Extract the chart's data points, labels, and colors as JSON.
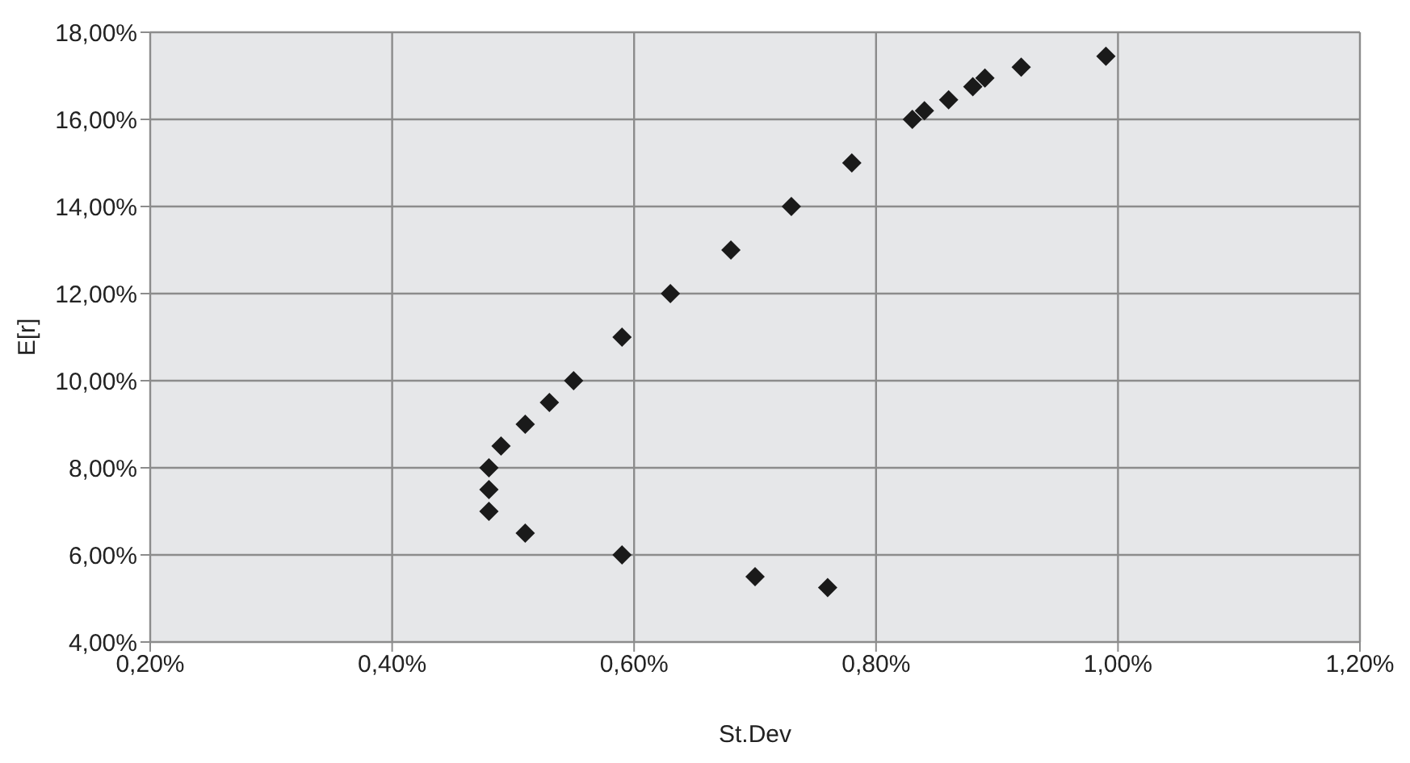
{
  "chart_data": {
    "type": "scatter",
    "xlabel": "St.Dev",
    "ylabel": "E[r]",
    "x": [
      0.99,
      0.92,
      0.89,
      0.88,
      0.86,
      0.84,
      0.83,
      0.78,
      0.73,
      0.68,
      0.63,
      0.59,
      0.55,
      0.53,
      0.51,
      0.49,
      0.48,
      0.48,
      0.48,
      0.51,
      0.59,
      0.7,
      0.76
    ],
    "values": [
      17.45,
      17.2,
      16.95,
      16.75,
      16.45,
      16.2,
      16.0,
      15.0,
      14.0,
      13.0,
      12.0,
      11.0,
      10.0,
      9.5,
      9.0,
      8.5,
      8.0,
      7.5,
      7.0,
      6.5,
      6.0,
      5.5,
      5.25
    ],
    "color": "#1a1a1a",
    "marker": "diamond",
    "grid": true,
    "xlim": [
      0.2,
      1.2
    ],
    "xticks": [
      {
        "value": 0.2,
        "label": "0,20%"
      },
      {
        "value": 0.4,
        "label": "0,40%"
      },
      {
        "value": 0.6,
        "label": "0,60%"
      },
      {
        "value": 0.8,
        "label": "0,80%"
      },
      {
        "value": 1.0,
        "label": "1,00%"
      },
      {
        "value": 1.2,
        "label": "1,20%"
      }
    ],
    "ylim": [
      4,
      18
    ],
    "yticks": [
      {
        "value": 4,
        "label": "4,00%"
      },
      {
        "value": 6,
        "label": "6,00%"
      },
      {
        "value": 8,
        "label": "8,00%"
      },
      {
        "value": 10,
        "label": "10,00%"
      },
      {
        "value": 12,
        "label": "12,00%"
      },
      {
        "value": 14,
        "label": "14,00%"
      },
      {
        "value": 16,
        "label": "16,00%"
      },
      {
        "value": 18,
        "label": "18,00%"
      }
    ]
  }
}
